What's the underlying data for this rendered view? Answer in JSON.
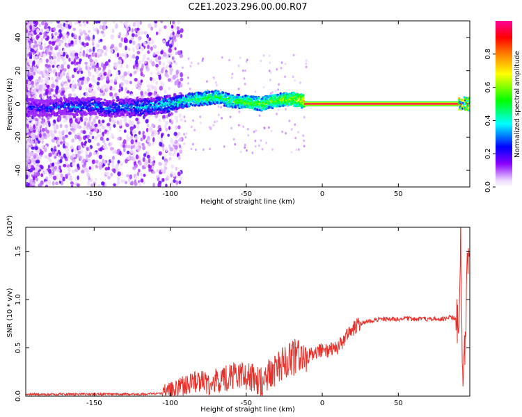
{
  "title": "C2E1.2023.296.00.00.R07",
  "chart_data": [
    {
      "type": "heatmap",
      "xlabel": "Height of straight line (km)",
      "ylabel": "Frequency (Hz)",
      "xlim": [
        -195,
        97
      ],
      "ylim": [
        -50,
        50
      ],
      "x_ticks": [
        -150,
        -100,
        -50,
        0,
        50
      ],
      "y_ticks": [
        -40,
        -20,
        0,
        20,
        40
      ],
      "colorbar": {
        "label": "Normalized spectral amplitude",
        "range": [
          0,
          1
        ],
        "ticks": [
          0.0,
          0.2,
          0.4,
          0.6,
          0.8
        ],
        "tick_labels": [
          "0.0",
          "0.2",
          "0.4",
          "0.6",
          "0.8"
        ],
        "colors": [
          "#ffffff",
          "#8a00ff",
          "#0000ff",
          "#00ffff",
          "#00ff00",
          "#ffff00",
          "#ff7f00",
          "#ff0000",
          "#ff00aa"
        ]
      },
      "ridge": {
        "x": [
          -190,
          -180,
          -170,
          -160,
          -150,
          -140,
          -130,
          -120,
          -110,
          -100,
          -90,
          -80,
          -70,
          -60,
          -50,
          -40,
          -30,
          -20,
          -10,
          0,
          10,
          20,
          30,
          40,
          50,
          60,
          70,
          80,
          90,
          95
        ],
        "frequency": [
          -2,
          -3,
          -1,
          -2,
          -1,
          -3,
          -2,
          -2,
          -1,
          0,
          2,
          3,
          4,
          2,
          1,
          0,
          2,
          3,
          1,
          0,
          0,
          0,
          0,
          0,
          0,
          0,
          0,
          0,
          0,
          0
        ],
        "amplitude": [
          0.2,
          0.25,
          0.25,
          0.3,
          0.3,
          0.3,
          0.3,
          0.35,
          0.35,
          0.4,
          0.45,
          0.5,
          0.5,
          0.5,
          0.55,
          0.55,
          0.55,
          0.6,
          0.7,
          0.95,
          0.95,
          0.95,
          0.95,
          0.95,
          0.95,
          0.95,
          0.95,
          0.95,
          0.9,
          0.5
        ]
      }
    },
    {
      "type": "line",
      "xlabel": "Height of straight line (km)",
      "ylabel": "SNR (10 * v/v)",
      "y_multiplier": "(x10⁴)",
      "xlim": [
        -195,
        97
      ],
      "ylim": [
        0,
        1.75
      ],
      "x_ticks": [
        -150,
        -100,
        -50,
        0,
        50
      ],
      "y_ticks": [
        0.0,
        0.5,
        1.0,
        1.5
      ],
      "y_tick_labels": [
        "0.0",
        "0.5",
        "1.0",
        "1.5"
      ],
      "color": "#e8302a",
      "series": [
        {
          "x": [
            -195,
            -180,
            -160,
            -140,
            -120,
            -105,
            -100,
            -95,
            -90,
            -85,
            -80,
            -75,
            -70,
            -65,
            -60,
            -55,
            -50,
            -45,
            -40,
            -35,
            -30,
            -25,
            -20,
            -15,
            -10,
            -5,
            0,
            5,
            10,
            15,
            20,
            25,
            30,
            40,
            50,
            60,
            70,
            80,
            85,
            88,
            90,
            91,
            92,
            93,
            94,
            95,
            96
          ],
          "values": [
            0.02,
            0.02,
            0.02,
            0.02,
            0.02,
            0.03,
            0.05,
            0.08,
            0.12,
            0.14,
            0.15,
            0.13,
            0.16,
            0.18,
            0.2,
            0.2,
            0.22,
            0.18,
            0.15,
            0.22,
            0.28,
            0.35,
            0.4,
            0.42,
            0.4,
            0.45,
            0.47,
            0.48,
            0.5,
            0.6,
            0.7,
            0.75,
            0.78,
            0.8,
            0.8,
            0.8,
            0.8,
            0.8,
            0.82,
            0.8,
            0.7,
            1.72,
            0.4,
            0.25,
            0.55,
            1.2,
            1.35
          ]
        }
      ]
    }
  ]
}
